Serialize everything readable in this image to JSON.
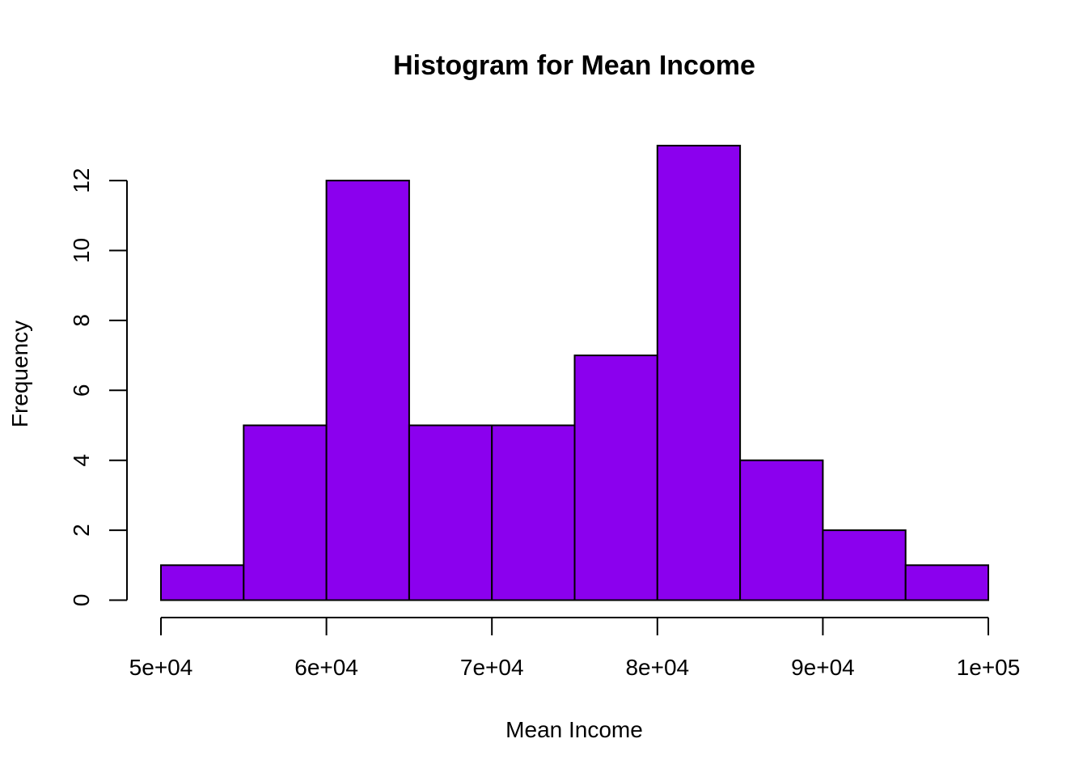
{
  "chart_data": {
    "type": "bar",
    "title": "Histogram for Mean Income",
    "xlabel": "Mean Income",
    "ylabel": "Frequency",
    "bins": [
      {
        "start": 50000,
        "end": 55000,
        "count": 1
      },
      {
        "start": 55000,
        "end": 60000,
        "count": 5
      },
      {
        "start": 60000,
        "end": 65000,
        "count": 12
      },
      {
        "start": 65000,
        "end": 70000,
        "count": 5
      },
      {
        "start": 70000,
        "end": 75000,
        "count": 5
      },
      {
        "start": 75000,
        "end": 80000,
        "count": 7
      },
      {
        "start": 80000,
        "end": 85000,
        "count": 13
      },
      {
        "start": 85000,
        "end": 90000,
        "count": 4
      },
      {
        "start": 90000,
        "end": 95000,
        "count": 2
      },
      {
        "start": 95000,
        "end": 100000,
        "count": 1
      }
    ],
    "xlim": [
      50000,
      100000
    ],
    "ylim": [
      0,
      13
    ],
    "x_ticks": [
      {
        "value": 50000,
        "label": "5e+04"
      },
      {
        "value": 60000,
        "label": "6e+04"
      },
      {
        "value": 70000,
        "label": "7e+04"
      },
      {
        "value": 80000,
        "label": "8e+04"
      },
      {
        "value": 90000,
        "label": "9e+04"
      },
      {
        "value": 100000,
        "label": "1e+05"
      }
    ],
    "y_ticks": [
      {
        "value": 0,
        "label": "0"
      },
      {
        "value": 2,
        "label": "2"
      },
      {
        "value": 4,
        "label": "4"
      },
      {
        "value": 6,
        "label": "6"
      },
      {
        "value": 8,
        "label": "8"
      },
      {
        "value": 10,
        "label": "10"
      },
      {
        "value": 12,
        "label": "12"
      }
    ],
    "bar_color": "#8b00ee",
    "grid": false,
    "legend": "none"
  }
}
